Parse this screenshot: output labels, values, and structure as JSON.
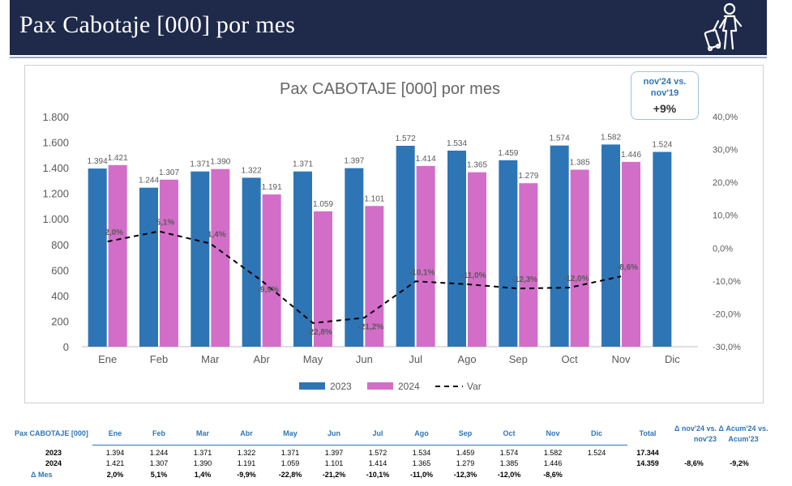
{
  "header": {
    "title": "Pax Cabotaje [000] por mes"
  },
  "compare_box": {
    "label": "nov'24 vs. nov'19",
    "value": "+9%"
  },
  "colors": {
    "y2023": "#2e75b6",
    "y2024": "#d36ec8",
    "var": "#000000",
    "header_bg": "#1f2a4a"
  },
  "icons": {
    "header": "traveler-with-suitcase-icon"
  },
  "chart_data": {
    "type": "bar",
    "title": "Pax CABOTAJE [000] por mes",
    "categories": [
      "Ene",
      "Feb",
      "Mar",
      "Abr",
      "May",
      "Jun",
      "Jul",
      "Ago",
      "Sep",
      "Oct",
      "Nov",
      "Dic"
    ],
    "series": [
      {
        "name": "2023",
        "values": [
          1394,
          1244,
          1371,
          1322,
          1371,
          1397,
          1572,
          1534,
          1459,
          1574,
          1582,
          1524
        ],
        "labels": [
          "1.394",
          "1.244",
          "1.371",
          "1.322",
          "1.371",
          "1.397",
          "1.572",
          "1.534",
          "1.459",
          "1.574",
          "1.582",
          "1.524"
        ]
      },
      {
        "name": "2024",
        "values": [
          1421,
          1307,
          1390,
          1191,
          1059,
          1101,
          1414,
          1365,
          1279,
          1385,
          1446,
          null
        ],
        "labels": [
          "1.421",
          "1.307",
          "1.390",
          "1.191",
          "1.059",
          "1.101",
          "1.414",
          "1.365",
          "1.279",
          "1.385",
          "1.446",
          ""
        ]
      }
    ],
    "line_series": {
      "name": "Var",
      "axis": "right",
      "style": "dashed",
      "values": [
        2.0,
        5.1,
        1.4,
        -9.9,
        -22.8,
        -21.2,
        -10.1,
        -11.0,
        -12.3,
        -12.0,
        -8.6,
        null
      ],
      "labels": [
        "2,0%",
        "5,1%",
        "1,4%",
        "-9,9%",
        "-22,8%",
        "-21,2%",
        "-10,1%",
        "-11,0%",
        "-12,3%",
        "-12,0%",
        "-8,6%",
        ""
      ]
    },
    "ylim": [
      0,
      1800
    ],
    "yticks": [
      0,
      200,
      400,
      600,
      800,
      1000,
      1200,
      1400,
      1600,
      1800
    ],
    "ytick_labels": [
      "0",
      "200",
      "400",
      "600",
      "800",
      "1.000",
      "1.200",
      "1.400",
      "1.600",
      "1.800"
    ],
    "y2lim": [
      -30,
      40
    ],
    "y2ticks": [
      -30,
      -20,
      -10,
      0,
      10,
      20,
      30,
      40
    ],
    "y2tick_labels": [
      "-30,0%",
      "-20,0%",
      "-10,0%",
      "0,0%",
      "10,0%",
      "20,0%",
      "30,0%",
      "40,0%"
    ],
    "grid": false,
    "legend": "bottom-center"
  },
  "table": {
    "title": "Pax CABOTAJE [000]",
    "months": [
      "Ene",
      "Feb",
      "Mar",
      "Abr",
      "May",
      "Jun",
      "Jul",
      "Ago",
      "Sep",
      "Oct",
      "Nov",
      "Dic"
    ],
    "total_header": "Total",
    "delta_nov_header": "Δ nov'24 vs. nov'23",
    "delta_acum_header": "Δ Acum'24 vs. Acum'23",
    "rows": [
      {
        "label": "2023",
        "values": [
          "1.394",
          "1.244",
          "1.371",
          "1.322",
          "1.371",
          "1.397",
          "1.572",
          "1.534",
          "1.459",
          "1.574",
          "1.582",
          "1.524"
        ],
        "total": "17.344",
        "delta_nov": "",
        "delta_acum": ""
      },
      {
        "label": "2024",
        "values": [
          "1.421",
          "1.307",
          "1.390",
          "1.191",
          "1.059",
          "1.101",
          "1.414",
          "1.365",
          "1.279",
          "1.385",
          "1.446",
          ""
        ],
        "total": "14.359",
        "delta_nov": "-8,6%",
        "delta_acum": "-9,2%"
      },
      {
        "label": "Δ Mes",
        "values": [
          "2,0%",
          "5,1%",
          "1,4%",
          "-9,9%",
          "-22,8%",
          "-21,2%",
          "-10,1%",
          "-11,0%",
          "-12,3%",
          "-12,0%",
          "-8,6%",
          ""
        ],
        "total": "",
        "delta_nov": "",
        "delta_acum": ""
      }
    ]
  }
}
